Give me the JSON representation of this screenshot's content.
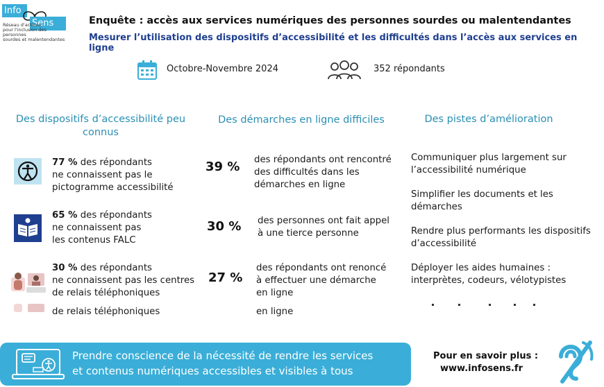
{
  "logo": {
    "info": "Info",
    "sens": "Sens",
    "subtitle_lines": [
      "Réseau d'actions",
      "pour l'inclusion des personnes",
      "sourdes et malentendantes"
    ]
  },
  "header": {
    "title": "Enquête : accès aux services numériques des personnes sourdes ou malentendantes",
    "subtitle": "Mesurer l’utilisation des dispositifs d’accessibilité et les difficultés dans l’accès aux services en ligne"
  },
  "meta": {
    "date": "Octobre-Novembre 2024",
    "respondents": "352 répondants"
  },
  "columns": {
    "left_heading_lines": [
      "Des dispositifs d’accessibilité peu",
      "connus"
    ],
    "middle_heading": "Des démarches en ligne difficiles",
    "right_heading": "Des pistes d’amélioration"
  },
  "left_items": [
    {
      "pct": "77 %",
      "rest_first": " des répondants",
      "lines": [
        "ne connaissent pas le",
        "pictogramme accessibilité"
      ],
      "icon": "accessibility-pictogram-icon"
    },
    {
      "pct": "65 %",
      "rest_first": " des répondants",
      "lines": [
        "ne connaissent pas",
        "les contenus FALC"
      ],
      "icon": "falc-reading-icon"
    },
    {
      "pct": "30 %",
      "rest_first": " des répondants",
      "lines": [
        "ne connaissent pas les centres",
        "de relais téléphoniques"
      ],
      "icon": "relay-interpreter-icon"
    }
  ],
  "left_ghost": "de relais téléphoniques",
  "middle_items": [
    {
      "pct": "39 %",
      "lines": [
        "des répondants ont rencontré",
        "des difficultés dans les",
        "démarches en ligne"
      ]
    },
    {
      "pct": "30 %",
      "lines": [
        "des personnes ont fait appel",
        "à une tierce personne"
      ]
    },
    {
      "pct": "27 %",
      "lines": [
        "des répondants ont renoncé",
        "à effectuer une démarche",
        "en ligne"
      ]
    }
  ],
  "middle_ghost": "en ligne",
  "right_items": [
    {
      "lines": [
        "Communiquer plus largement sur",
        "l’accessibilité numérique"
      ]
    },
    {
      "lines": [
        "Simplifier les documents et les",
        "démarches"
      ]
    },
    {
      "lines": [
        "Rendre plus performants les dispositifs",
        "d’accessibilité"
      ]
    },
    {
      "lines": [
        "Déployer les aides humaines :",
        "interprètes, codeurs, vélotypistes"
      ]
    }
  ],
  "banner": {
    "lines": [
      "Prendre conscience de la nécessité de rendre les services",
      "et contenus numériques accessibles et visibles à tous"
    ],
    "icon": "laptop-accessibility-icon"
  },
  "footer": {
    "more_label": "Pour en savoir plus :",
    "url": "www.infosens.fr"
  },
  "colors": {
    "accent": "#3aaed8",
    "heading_blue": "#2a8fb3",
    "subtitle_navy": "#1f3f8f",
    "falc_navy": "#1f3f8f"
  }
}
